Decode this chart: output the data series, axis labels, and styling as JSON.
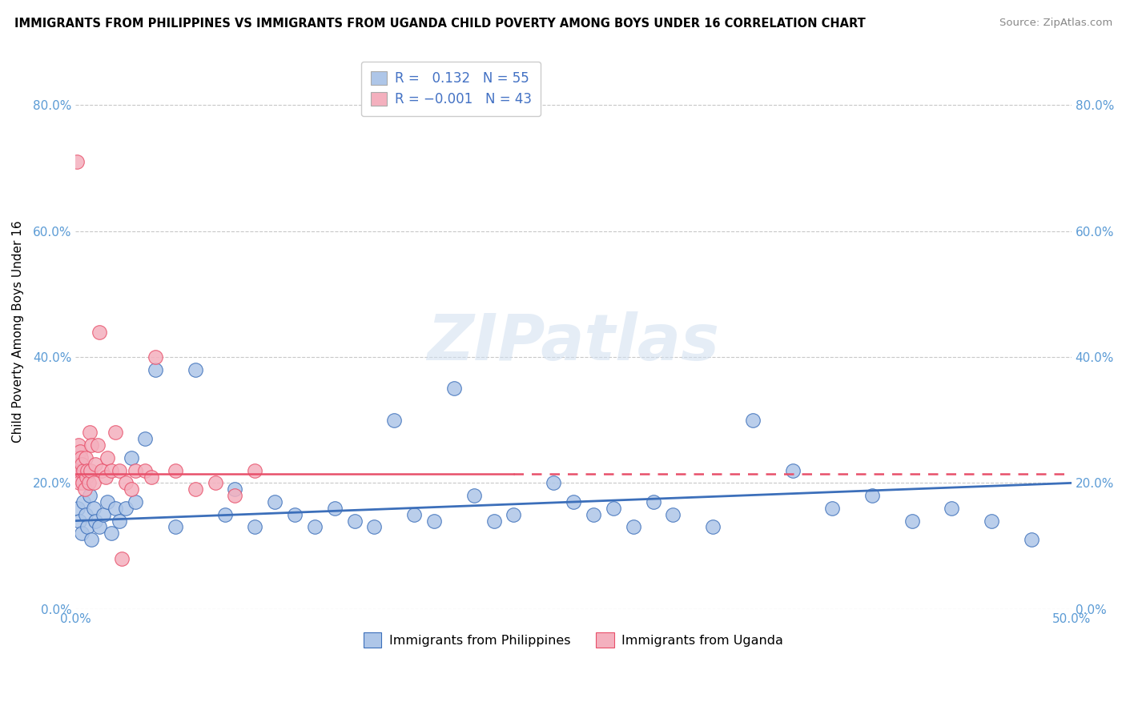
{
  "title": "IMMIGRANTS FROM PHILIPPINES VS IMMIGRANTS FROM UGANDA CHILD POVERTY AMONG BOYS UNDER 16 CORRELATION CHART",
  "source": "Source: ZipAtlas.com",
  "ylabel": "Child Poverty Among Boys Under 16",
  "ytick_labels": [
    "0.0%",
    "20.0%",
    "40.0%",
    "60.0%",
    "80.0%"
  ],
  "ytick_values": [
    0,
    20,
    40,
    60,
    80
  ],
  "xlim": [
    0,
    50
  ],
  "ylim": [
    0,
    88
  ],
  "r_philippines": 0.132,
  "n_philippines": 55,
  "r_uganda": -0.001,
  "n_uganda": 43,
  "color_philippines": "#aec6e8",
  "color_uganda": "#f4b0be",
  "trendline_philippines": "#3c6fba",
  "trendline_uganda": "#e8506a",
  "legend_label_philippines": "Immigrants from Philippines",
  "legend_label_uganda": "Immigrants from Uganda",
  "philippines_x": [
    0.1,
    0.2,
    0.3,
    0.4,
    0.5,
    0.6,
    0.7,
    0.8,
    0.9,
    1.0,
    1.2,
    1.4,
    1.6,
    1.8,
    2.0,
    2.2,
    2.5,
    2.8,
    3.0,
    3.5,
    4.0,
    5.0,
    6.0,
    7.5,
    8.0,
    9.0,
    10.0,
    11.0,
    12.0,
    13.0,
    14.0,
    15.0,
    16.0,
    17.0,
    18.0,
    19.0,
    20.0,
    21.0,
    22.0,
    24.0,
    25.0,
    26.0,
    27.0,
    28.0,
    29.0,
    30.0,
    32.0,
    34.0,
    36.0,
    38.0,
    40.0,
    42.0,
    44.0,
    46.0,
    48.0
  ],
  "philippines_y": [
    16,
    14,
    12,
    17,
    15,
    13,
    18,
    11,
    16,
    14,
    13,
    15,
    17,
    12,
    16,
    14,
    16,
    24,
    17,
    27,
    38,
    13,
    38,
    15,
    19,
    13,
    17,
    15,
    13,
    16,
    14,
    13,
    30,
    15,
    14,
    35,
    18,
    14,
    15,
    20,
    17,
    15,
    16,
    13,
    17,
    15,
    13,
    30,
    22,
    16,
    18,
    14,
    16,
    14,
    11
  ],
  "uganda_x": [
    0.05,
    0.08,
    0.1,
    0.12,
    0.15,
    0.18,
    0.2,
    0.22,
    0.25,
    0.28,
    0.3,
    0.35,
    0.4,
    0.45,
    0.5,
    0.55,
    0.6,
    0.65,
    0.7,
    0.75,
    0.8,
    0.9,
    1.0,
    1.1,
    1.2,
    1.3,
    1.5,
    1.6,
    1.8,
    2.0,
    2.2,
    2.5,
    2.8,
    3.0,
    3.5,
    4.0,
    5.0,
    6.0,
    7.0,
    8.0,
    9.0,
    2.3,
    3.8
  ],
  "uganda_y": [
    71,
    22,
    21,
    24,
    26,
    23,
    20,
    25,
    22,
    24,
    23,
    20,
    22,
    19,
    24,
    21,
    22,
    20,
    28,
    22,
    26,
    20,
    23,
    26,
    44,
    22,
    21,
    24,
    22,
    28,
    22,
    20,
    19,
    22,
    22,
    40,
    22,
    19,
    20,
    18,
    22,
    8,
    21
  ],
  "watermark": "ZIPatlas",
  "background_color": "#ffffff",
  "grid_color": "#c8c8c8"
}
